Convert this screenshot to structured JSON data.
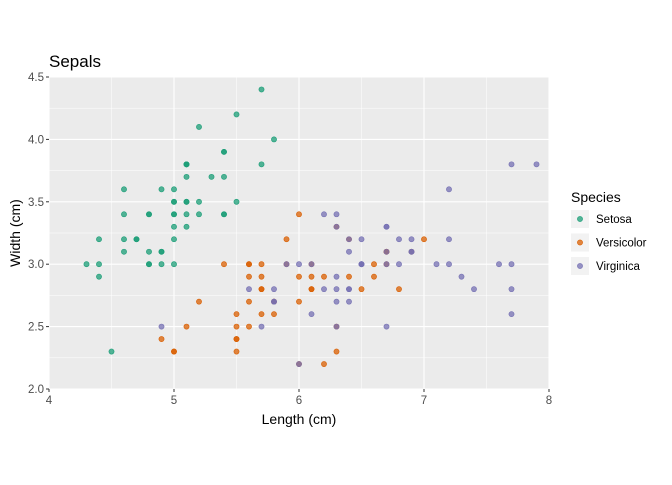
{
  "chart_data": {
    "type": "scatter",
    "title": "Sepals",
    "xlabel": "Length (cm)",
    "ylabel": "Width (cm)",
    "xlim": [
      4,
      8
    ],
    "ylim": [
      2.0,
      4.5
    ],
    "xticks": [
      4,
      5,
      6,
      7,
      8
    ],
    "xtick_labels": [
      "4",
      "5",
      "6",
      "7",
      "8"
    ],
    "yticks": [
      2.0,
      2.5,
      3.0,
      3.5,
      4.0,
      4.5
    ],
    "ytick_labels": [
      "2.0",
      "2.5",
      "3.0",
      "3.5",
      "4.0",
      "4.5"
    ],
    "grid": true,
    "panel_background": "#EBEBEB",
    "legend": {
      "title": "Species",
      "placement": "right"
    },
    "series": [
      {
        "name": "Setosa",
        "color": "#1B9E77",
        "points": [
          [
            5.1,
            3.5
          ],
          [
            4.9,
            3.0
          ],
          [
            4.7,
            3.2
          ],
          [
            4.6,
            3.1
          ],
          [
            5.0,
            3.6
          ],
          [
            5.4,
            3.9
          ],
          [
            4.6,
            3.4
          ],
          [
            5.0,
            3.4
          ],
          [
            4.4,
            2.9
          ],
          [
            4.9,
            3.1
          ],
          [
            5.4,
            3.7
          ],
          [
            4.8,
            3.4
          ],
          [
            4.8,
            3.0
          ],
          [
            4.3,
            3.0
          ],
          [
            5.8,
            4.0
          ],
          [
            5.7,
            4.4
          ],
          [
            5.4,
            3.9
          ],
          [
            5.1,
            3.5
          ],
          [
            5.7,
            3.8
          ],
          [
            5.1,
            3.8
          ],
          [
            5.4,
            3.4
          ],
          [
            5.1,
            3.7
          ],
          [
            4.6,
            3.6
          ],
          [
            5.1,
            3.3
          ],
          [
            4.8,
            3.4
          ],
          [
            5.0,
            3.0
          ],
          [
            5.0,
            3.4
          ],
          [
            5.2,
            3.5
          ],
          [
            5.2,
            3.4
          ],
          [
            4.7,
            3.2
          ],
          [
            4.8,
            3.1
          ],
          [
            5.4,
            3.4
          ],
          [
            5.2,
            4.1
          ],
          [
            5.5,
            4.2
          ],
          [
            4.9,
            3.1
          ],
          [
            5.0,
            3.2
          ],
          [
            5.5,
            3.5
          ],
          [
            4.9,
            3.6
          ],
          [
            4.4,
            3.0
          ],
          [
            5.1,
            3.4
          ],
          [
            5.0,
            3.5
          ],
          [
            4.5,
            2.3
          ],
          [
            4.4,
            3.2
          ],
          [
            5.0,
            3.5
          ],
          [
            5.1,
            3.8
          ],
          [
            4.8,
            3.0
          ],
          [
            5.1,
            3.8
          ],
          [
            4.6,
            3.2
          ],
          [
            5.3,
            3.7
          ],
          [
            5.0,
            3.3
          ]
        ]
      },
      {
        "name": "Versicolor",
        "color": "#D95F02",
        "points": [
          [
            7.0,
            3.2
          ],
          [
            6.4,
            3.2
          ],
          [
            6.9,
            3.1
          ],
          [
            5.5,
            2.3
          ],
          [
            6.5,
            2.8
          ],
          [
            5.7,
            2.8
          ],
          [
            6.3,
            3.3
          ],
          [
            4.9,
            2.4
          ],
          [
            6.6,
            2.9
          ],
          [
            5.2,
            2.7
          ],
          [
            5.0,
            2.3
          ],
          [
            5.9,
            3.0
          ],
          [
            6.0,
            2.2
          ],
          [
            6.1,
            2.9
          ],
          [
            5.6,
            2.9
          ],
          [
            6.7,
            3.1
          ],
          [
            5.6,
            3.0
          ],
          [
            5.8,
            2.7
          ],
          [
            6.2,
            2.2
          ],
          [
            5.6,
            2.5
          ],
          [
            5.9,
            3.2
          ],
          [
            6.1,
            2.8
          ],
          [
            6.3,
            2.5
          ],
          [
            6.1,
            2.8
          ],
          [
            6.4,
            2.9
          ],
          [
            6.6,
            3.0
          ],
          [
            6.8,
            2.8
          ],
          [
            6.7,
            3.0
          ],
          [
            6.0,
            2.9
          ],
          [
            5.7,
            2.6
          ],
          [
            5.5,
            2.4
          ],
          [
            5.5,
            2.4
          ],
          [
            5.8,
            2.7
          ],
          [
            6.0,
            2.7
          ],
          [
            5.4,
            3.0
          ],
          [
            6.0,
            3.4
          ],
          [
            6.7,
            3.1
          ],
          [
            6.3,
            2.3
          ],
          [
            5.6,
            3.0
          ],
          [
            5.5,
            2.5
          ],
          [
            5.5,
            2.6
          ],
          [
            6.1,
            3.0
          ],
          [
            5.8,
            2.6
          ],
          [
            5.0,
            2.3
          ],
          [
            5.6,
            2.7
          ],
          [
            5.7,
            3.0
          ],
          [
            5.7,
            2.9
          ],
          [
            6.2,
            2.9
          ],
          [
            5.1,
            2.5
          ],
          [
            5.7,
            2.8
          ]
        ]
      },
      {
        "name": "Virginica",
        "color": "#7570B3",
        "points": [
          [
            6.3,
            3.3
          ],
          [
            5.8,
            2.7
          ],
          [
            7.1,
            3.0
          ],
          [
            6.3,
            2.9
          ],
          [
            6.5,
            3.0
          ],
          [
            7.6,
            3.0
          ],
          [
            4.9,
            2.5
          ],
          [
            7.3,
            2.9
          ],
          [
            6.7,
            2.5
          ],
          [
            7.2,
            3.6
          ],
          [
            6.5,
            3.2
          ],
          [
            6.4,
            2.7
          ],
          [
            6.8,
            3.0
          ],
          [
            5.7,
            2.5
          ],
          [
            5.8,
            2.8
          ],
          [
            6.4,
            3.2
          ],
          [
            6.5,
            3.0
          ],
          [
            7.7,
            3.8
          ],
          [
            7.7,
            2.6
          ],
          [
            6.0,
            2.2
          ],
          [
            6.9,
            3.2
          ],
          [
            5.6,
            2.8
          ],
          [
            7.7,
            2.8
          ],
          [
            6.3,
            2.7
          ],
          [
            6.7,
            3.3
          ],
          [
            7.2,
            3.2
          ],
          [
            6.2,
            2.8
          ],
          [
            6.1,
            3.0
          ],
          [
            6.4,
            2.8
          ],
          [
            7.2,
            3.0
          ],
          [
            7.4,
            2.8
          ],
          [
            7.9,
            3.8
          ],
          [
            6.4,
            2.8
          ],
          [
            6.3,
            2.8
          ],
          [
            6.1,
            2.6
          ],
          [
            7.7,
            3.0
          ],
          [
            6.3,
            3.4
          ],
          [
            6.4,
            3.1
          ],
          [
            6.0,
            3.0
          ],
          [
            6.9,
            3.1
          ],
          [
            6.7,
            3.1
          ],
          [
            6.9,
            3.1
          ],
          [
            5.8,
            2.7
          ],
          [
            6.8,
            3.2
          ],
          [
            6.7,
            3.3
          ],
          [
            6.7,
            3.0
          ],
          [
            6.3,
            2.5
          ],
          [
            6.5,
            3.0
          ],
          [
            6.2,
            3.4
          ],
          [
            5.9,
            3.0
          ]
        ]
      }
    ]
  }
}
